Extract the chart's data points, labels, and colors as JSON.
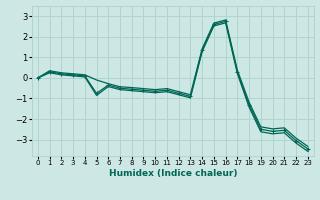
{
  "xlabel": "Humidex (Indice chaleur)",
  "bg_color": "#cde8e4",
  "grid_color": "#b0d4ce",
  "line_color": "#006655",
  "xlim": [
    -0.5,
    23.5
  ],
  "ylim": [
    -3.8,
    3.5
  ],
  "yticks": [
    -3,
    -2,
    -1,
    0,
    1,
    2,
    3
  ],
  "xticks": [
    0,
    1,
    2,
    3,
    4,
    5,
    6,
    7,
    8,
    9,
    10,
    11,
    12,
    13,
    14,
    15,
    16,
    17,
    18,
    19,
    20,
    21,
    22,
    23
  ],
  "x": [
    0,
    1,
    2,
    3,
    4,
    5,
    6,
    7,
    8,
    9,
    10,
    11,
    12,
    13,
    14,
    15,
    16,
    17,
    18,
    19,
    20,
    21,
    22,
    23
  ],
  "y_main": [
    0.0,
    0.3,
    0.2,
    0.15,
    0.1,
    -0.75,
    -0.35,
    -0.5,
    -0.55,
    -0.6,
    -0.65,
    -0.6,
    -0.75,
    -0.9,
    1.35,
    2.6,
    2.75,
    0.3,
    -1.3,
    -2.5,
    -2.6,
    -2.55,
    -3.05,
    -3.45
  ],
  "y_upper": [
    0.0,
    0.35,
    0.25,
    0.2,
    0.15,
    -0.1,
    -0.28,
    -0.43,
    -0.47,
    -0.52,
    -0.57,
    -0.52,
    -0.67,
    -0.82,
    1.42,
    2.67,
    2.82,
    0.38,
    -1.18,
    -2.38,
    -2.48,
    -2.43,
    -2.93,
    -3.33
  ],
  "y_lower": [
    0.0,
    0.25,
    0.15,
    0.1,
    0.05,
    -0.85,
    -0.42,
    -0.57,
    -0.62,
    -0.67,
    -0.72,
    -0.67,
    -0.82,
    -0.97,
    1.28,
    2.53,
    2.68,
    0.22,
    -1.42,
    -2.62,
    -2.72,
    -2.67,
    -3.17,
    -3.57
  ]
}
